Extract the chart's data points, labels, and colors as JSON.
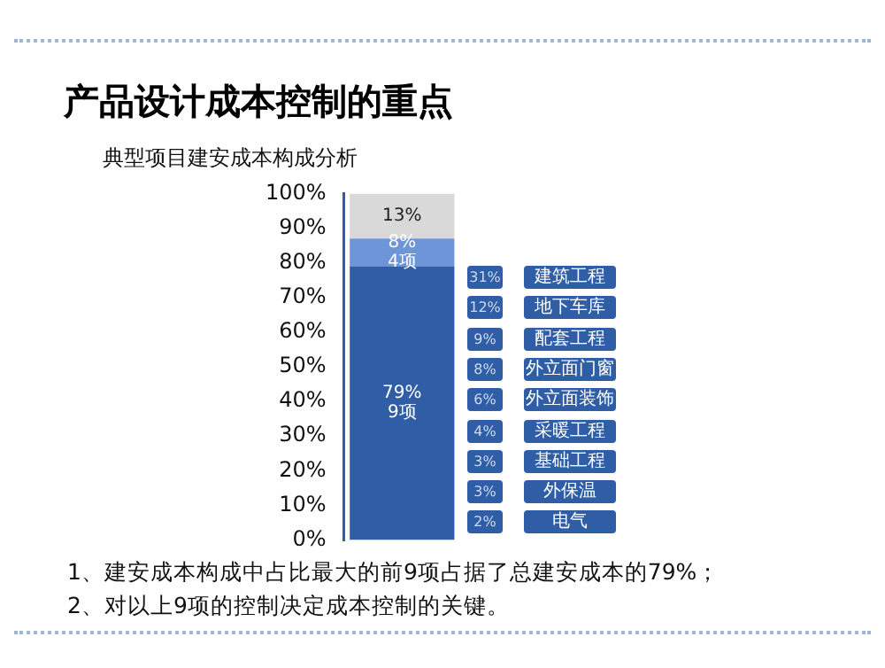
{
  "chart_data": [
    {
      "type": "bar",
      "title": "产品设计成本控制的重点",
      "subtitle": "典型项目建安成本构成分析",
      "stacked": true,
      "categories": [
        null
      ],
      "series": [
        {
          "color": "#2f5ea6",
          "values": [
            79
          ],
          "value_labels": [
            "79%\n9项"
          ]
        },
        {
          "color": "#6d95d8",
          "values": [
            8
          ],
          "value_labels": [
            "8%\n4项"
          ]
        },
        {
          "color": "#d9d9d9",
          "values": [
            13
          ],
          "value_labels": [
            "13%"
          ]
        }
      ],
      "ylim": [
        0,
        100
      ],
      "yticks": [
        {
          "value": 0,
          "label": "0%"
        },
        {
          "value": 10,
          "label": "10%"
        },
        {
          "value": 20,
          "label": "20%"
        },
        {
          "value": 30,
          "label": "30%"
        },
        {
          "value": 40,
          "label": "40%"
        },
        {
          "value": 50,
          "label": "50%"
        },
        {
          "value": 60,
          "label": "60%"
        },
        {
          "value": 70,
          "label": "70%"
        },
        {
          "value": 80,
          "label": "80%"
        },
        {
          "value": 90,
          "label": "90%"
        },
        {
          "value": 100,
          "label": "100%"
        }
      ],
      "tick_labels": "y",
      "grid": false,
      "legend": false,
      "annotations": [
        "1、建安成本构成中占比最大的前9项占据了总建安成本的79%；",
        "2、对以上9项的控制决定成本控制的关键。"
      ]
    },
    {
      "type": "other",
      "categories": [
        "建筑工程",
        "地下车库",
        "配套工程",
        "外立面门窗",
        "外立面装饰",
        "采暖工程",
        "基础工程",
        "外保温",
        "电气"
      ],
      "value_labels": [
        "31%",
        "12%",
        "9%",
        "8%",
        "6%",
        "4%",
        "3%",
        "3%",
        "2%"
      ],
      "color": "#2f5ea6"
    }
  ]
}
